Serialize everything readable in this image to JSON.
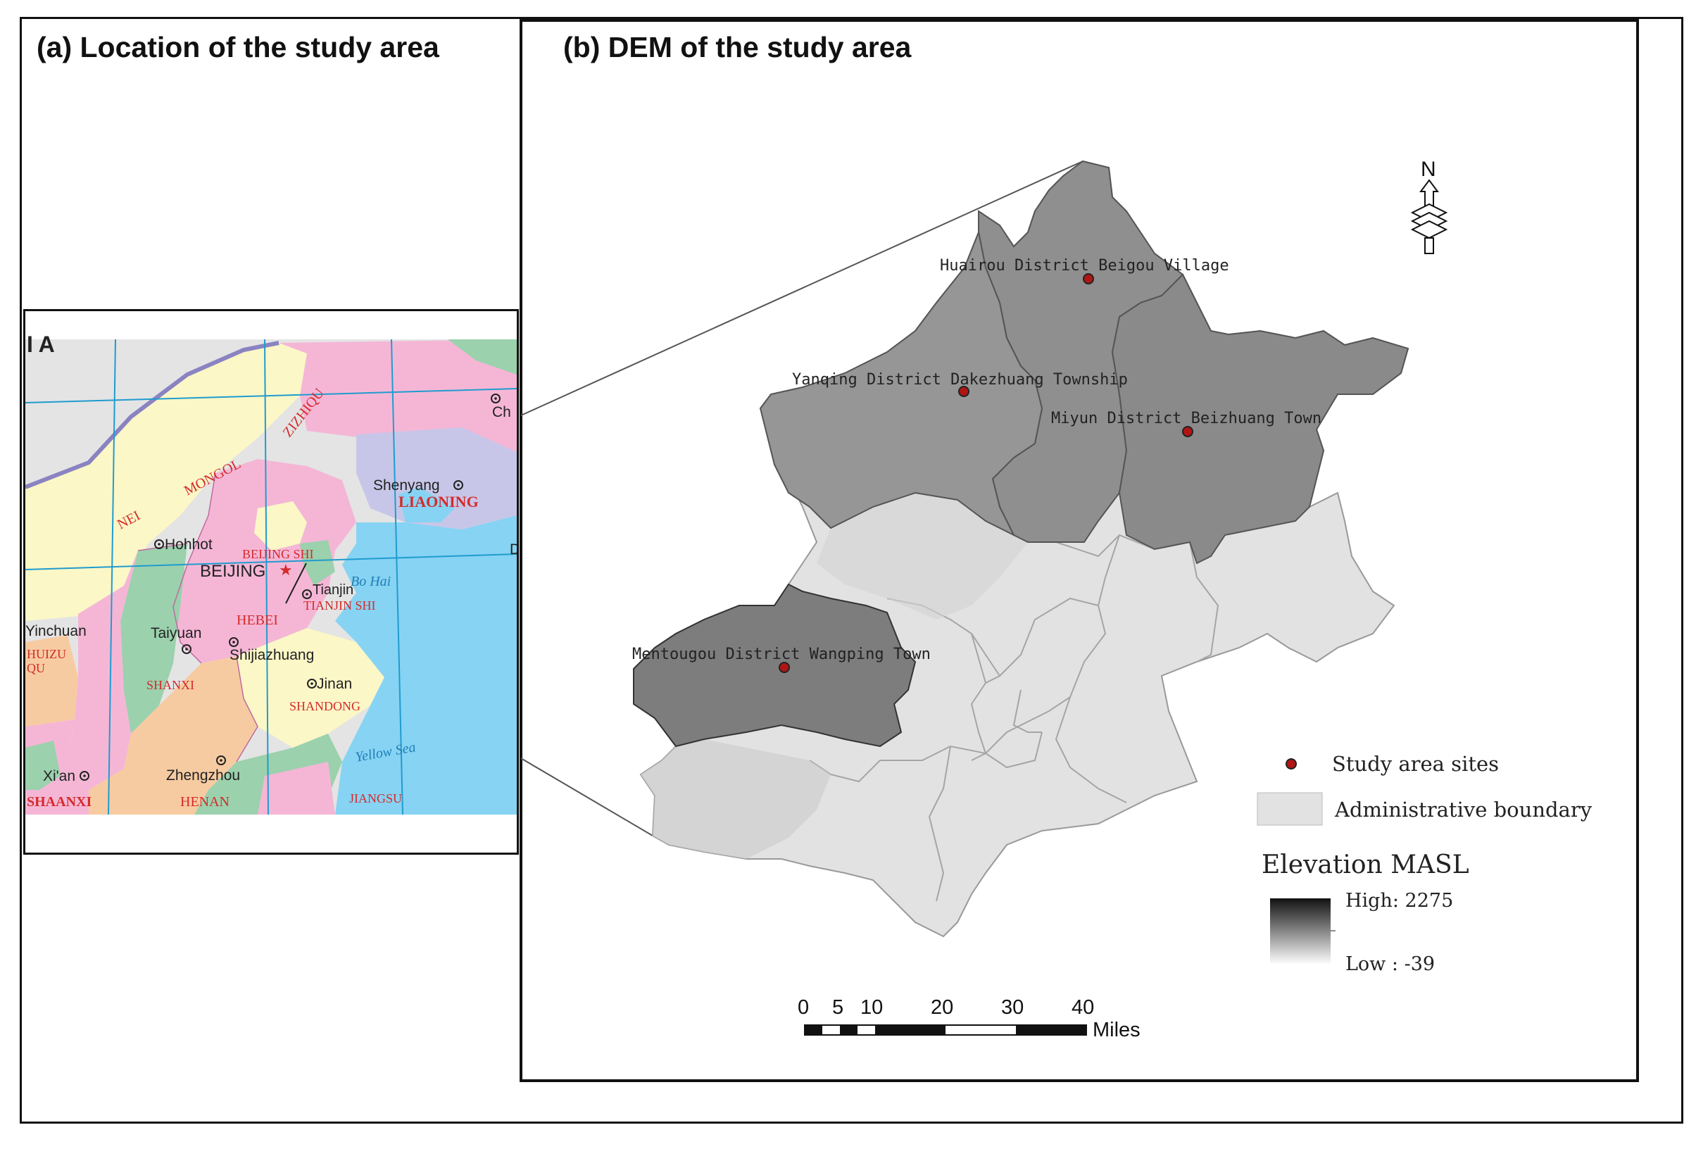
{
  "panel_a": {
    "title": "(a) Location of the study area",
    "labels": {
      "top_partial": "I A",
      "nei_mongol": [
        "NEI",
        "MONGOL",
        "ZIZHIQU"
      ],
      "liaoning": "LIAONING",
      "shenyang": "Shenyang",
      "ch": "Ch",
      "hohhot": "Hohhot",
      "beijing_shi": "BEIJING SHI",
      "beijing": "BEIJING",
      "tianjin": "Tianjin",
      "tianjin_shi": "TIANJIN SHI",
      "bo_hai": "Bo Hai",
      "hebei": "HEBEI",
      "yinchuan": "Yinchuan",
      "taiyuan": "Taiyuan",
      "shijiazhuang": "Shijiazhuang",
      "huizu": "HUIZU",
      "qu": "QU",
      "shanxi": "SHANXI",
      "jinan": "Jinan",
      "shandong": "SHANDONG",
      "xian": "Xi'an",
      "zhengzhou": "Zhengzhou",
      "shaanxi": "SHAANXI",
      "henan": "HENAN",
      "jiangsu": "JIANGSU",
      "yellow_sea": "Yellow Sea",
      "d_partial": "D"
    }
  },
  "panel_b": {
    "title": "(b)  DEM of the study area",
    "north": "N",
    "sites": [
      "Huairou District Beigou Village",
      "Yanqing District Dakezhuang Township",
      "Miyun District Beizhuang Town",
      "Mentougou District Wangping Town"
    ],
    "legend": {
      "sites_label": "Study area sites",
      "boundary_label": "Administrative boundary",
      "elevation_title": "Elevation MASL",
      "high_label": "High:",
      "high_value": "2275",
      "low_label": "Low :",
      "low_value": "-39"
    },
    "scale": {
      "ticks": [
        "0",
        "5",
        "10",
        "20",
        "30",
        "40"
      ],
      "unit": "Miles"
    }
  },
  "colors": {
    "study_district": "#8c8c8c",
    "other_district": "#e2e2e2",
    "site_dot": "#b01515",
    "province_pink": "#f5b6d6",
    "province_yellow": "#fbf7c6",
    "province_green": "#9bd1ad",
    "province_lavender": "#c8c6e8",
    "province_orange": "#f7cba1",
    "sea": "#87d3f3",
    "label_red": "#d42b2b"
  }
}
